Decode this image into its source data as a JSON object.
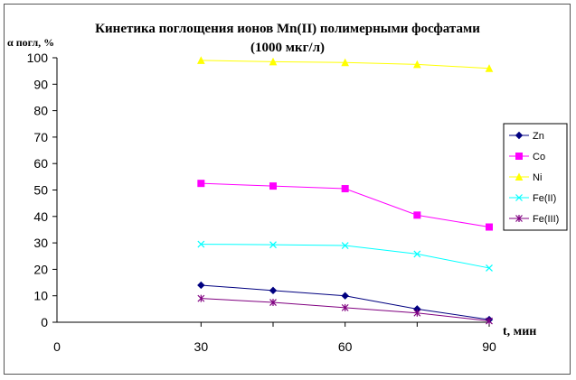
{
  "chart_data": {
    "type": "line",
    "title_line1": "Кинетика поглощения ионов Mn(II) полимерными фосфатами",
    "title_line2": "(1000 мкг/л)",
    "ylabel": "α погл, %",
    "xlabel": "t, мин",
    "xlim": [
      0,
      90
    ],
    "ylim": [
      0,
      100
    ],
    "x_ticks": [
      0,
      30,
      60,
      90
    ],
    "y_ticks": [
      0,
      10,
      20,
      30,
      40,
      50,
      60,
      70,
      80,
      90,
      100
    ],
    "x": [
      30,
      45,
      60,
      75,
      90
    ],
    "grid": false,
    "legend_position": "right",
    "series": [
      {
        "name": "Zn",
        "color": "#000080",
        "marker": "diamond",
        "values": [
          14,
          12,
          10,
          5,
          1
        ]
      },
      {
        "name": "Co",
        "color": "#FF00FF",
        "marker": "square",
        "values": [
          52.5,
          51.5,
          50.5,
          40.5,
          36
        ]
      },
      {
        "name": "Ni",
        "color": "#FFFF00",
        "marker": "triangle",
        "values": [
          99,
          98.5,
          98.2,
          97.5,
          96
        ]
      },
      {
        "name": "Fe(II)",
        "color": "#00FFFF",
        "marker": "x",
        "values": [
          29.5,
          29.3,
          29,
          25.8,
          20.5
        ]
      },
      {
        "name": "Fe(III)",
        "color": "#800080",
        "marker": "star",
        "values": [
          9,
          7.5,
          5.5,
          3.5,
          0.5
        ]
      }
    ]
  }
}
